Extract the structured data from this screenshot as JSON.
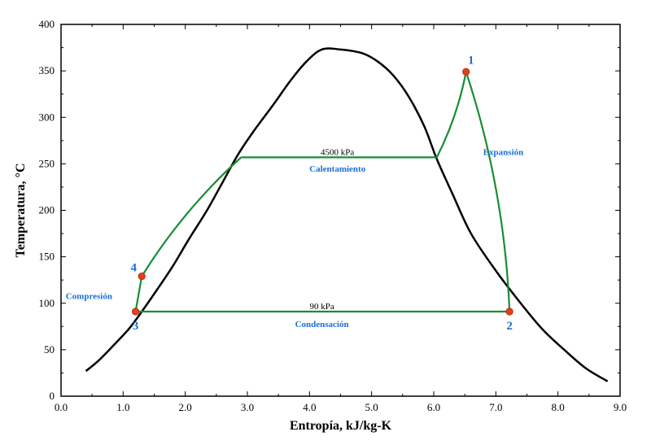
{
  "chart_data": {
    "type": "line",
    "xlabel": "Entropía, kJ/kg-K",
    "ylabel": "Temperatura, °C",
    "xlim": [
      0,
      9
    ],
    "ylim": [
      0,
      400
    ],
    "xticks": [
      "0.0",
      "1.0",
      "2.0",
      "3.0",
      "4.0",
      "5.0",
      "6.0",
      "7.0",
      "8.0",
      "9.0"
    ],
    "yticks": [
      "0",
      "50",
      "100",
      "150",
      "200",
      "250",
      "300",
      "350",
      "400"
    ],
    "colors": {
      "dome": "#000000",
      "cycle": "#1a8c34",
      "points": "#e0401e",
      "labels": "#1a6fd6"
    },
    "saturation_dome": [
      [
        0.4,
        27
      ],
      [
        0.6,
        38
      ],
      [
        0.85,
        55
      ],
      [
        1.1,
        73
      ],
      [
        1.3,
        91
      ],
      [
        1.55,
        115
      ],
      [
        1.8,
        140
      ],
      [
        2.05,
        168
      ],
      [
        2.35,
        200
      ],
      [
        2.6,
        230
      ],
      [
        2.85,
        260
      ],
      [
        3.1,
        285
      ],
      [
        3.4,
        312
      ],
      [
        3.7,
        340
      ],
      [
        3.95,
        360
      ],
      [
        4.2,
        373
      ],
      [
        4.5,
        373
      ],
      [
        4.85,
        369
      ],
      [
        5.1,
        360
      ],
      [
        5.35,
        345
      ],
      [
        5.6,
        322
      ],
      [
        5.85,
        290
      ],
      [
        6.05,
        255
      ],
      [
        6.3,
        218
      ],
      [
        6.6,
        175
      ],
      [
        7.0,
        135
      ],
      [
        7.4,
        100
      ],
      [
        7.75,
        72
      ],
      [
        8.1,
        50
      ],
      [
        8.45,
        30
      ],
      [
        8.8,
        16
      ]
    ],
    "cycle_path": [
      {
        "from": [
          1.3,
          129
        ],
        "to": [
          2.9,
          257
        ],
        "curve": "concave"
      },
      {
        "from": [
          2.9,
          257
        ],
        "to": [
          6.05,
          257
        ],
        "curve": "straight"
      },
      {
        "from": [
          6.05,
          257
        ],
        "to": [
          6.52,
          349
        ],
        "curve": "convex"
      },
      {
        "from": [
          6.52,
          349
        ],
        "to": [
          7.22,
          91
        ],
        "curve": "concave"
      },
      {
        "from": [
          7.22,
          91
        ],
        "to": [
          1.2,
          91
        ],
        "curve": "straight"
      },
      {
        "from": [
          1.2,
          91
        ],
        "to": [
          1.3,
          129
        ],
        "curve": "straight"
      }
    ],
    "states": [
      {
        "label": "1",
        "s": 6.52,
        "T": 349,
        "anchor": "above-right"
      },
      {
        "label": "2",
        "s": 7.22,
        "T": 91,
        "anchor": "below"
      },
      {
        "label": "3",
        "s": 1.2,
        "T": 91,
        "anchor": "below"
      },
      {
        "label": "4",
        "s": 1.3,
        "T": 129,
        "anchor": "above-left"
      }
    ],
    "annotations": [
      {
        "text": "4500 kPa",
        "s": 4.45,
        "T": 263,
        "style": "note"
      },
      {
        "text": "Calentamiento",
        "s": 4.45,
        "T": 245,
        "style": "blue-note"
      },
      {
        "text": "Expansión",
        "s": 7.12,
        "T": 263,
        "style": "blue-note"
      },
      {
        "text": "90 kPa",
        "s": 4.2,
        "T": 97,
        "style": "note"
      },
      {
        "text": "Condensación",
        "s": 4.2,
        "T": 78,
        "style": "blue-note"
      },
      {
        "text": "Compresión",
        "s": 0.45,
        "T": 108,
        "style": "blue-note"
      }
    ]
  }
}
